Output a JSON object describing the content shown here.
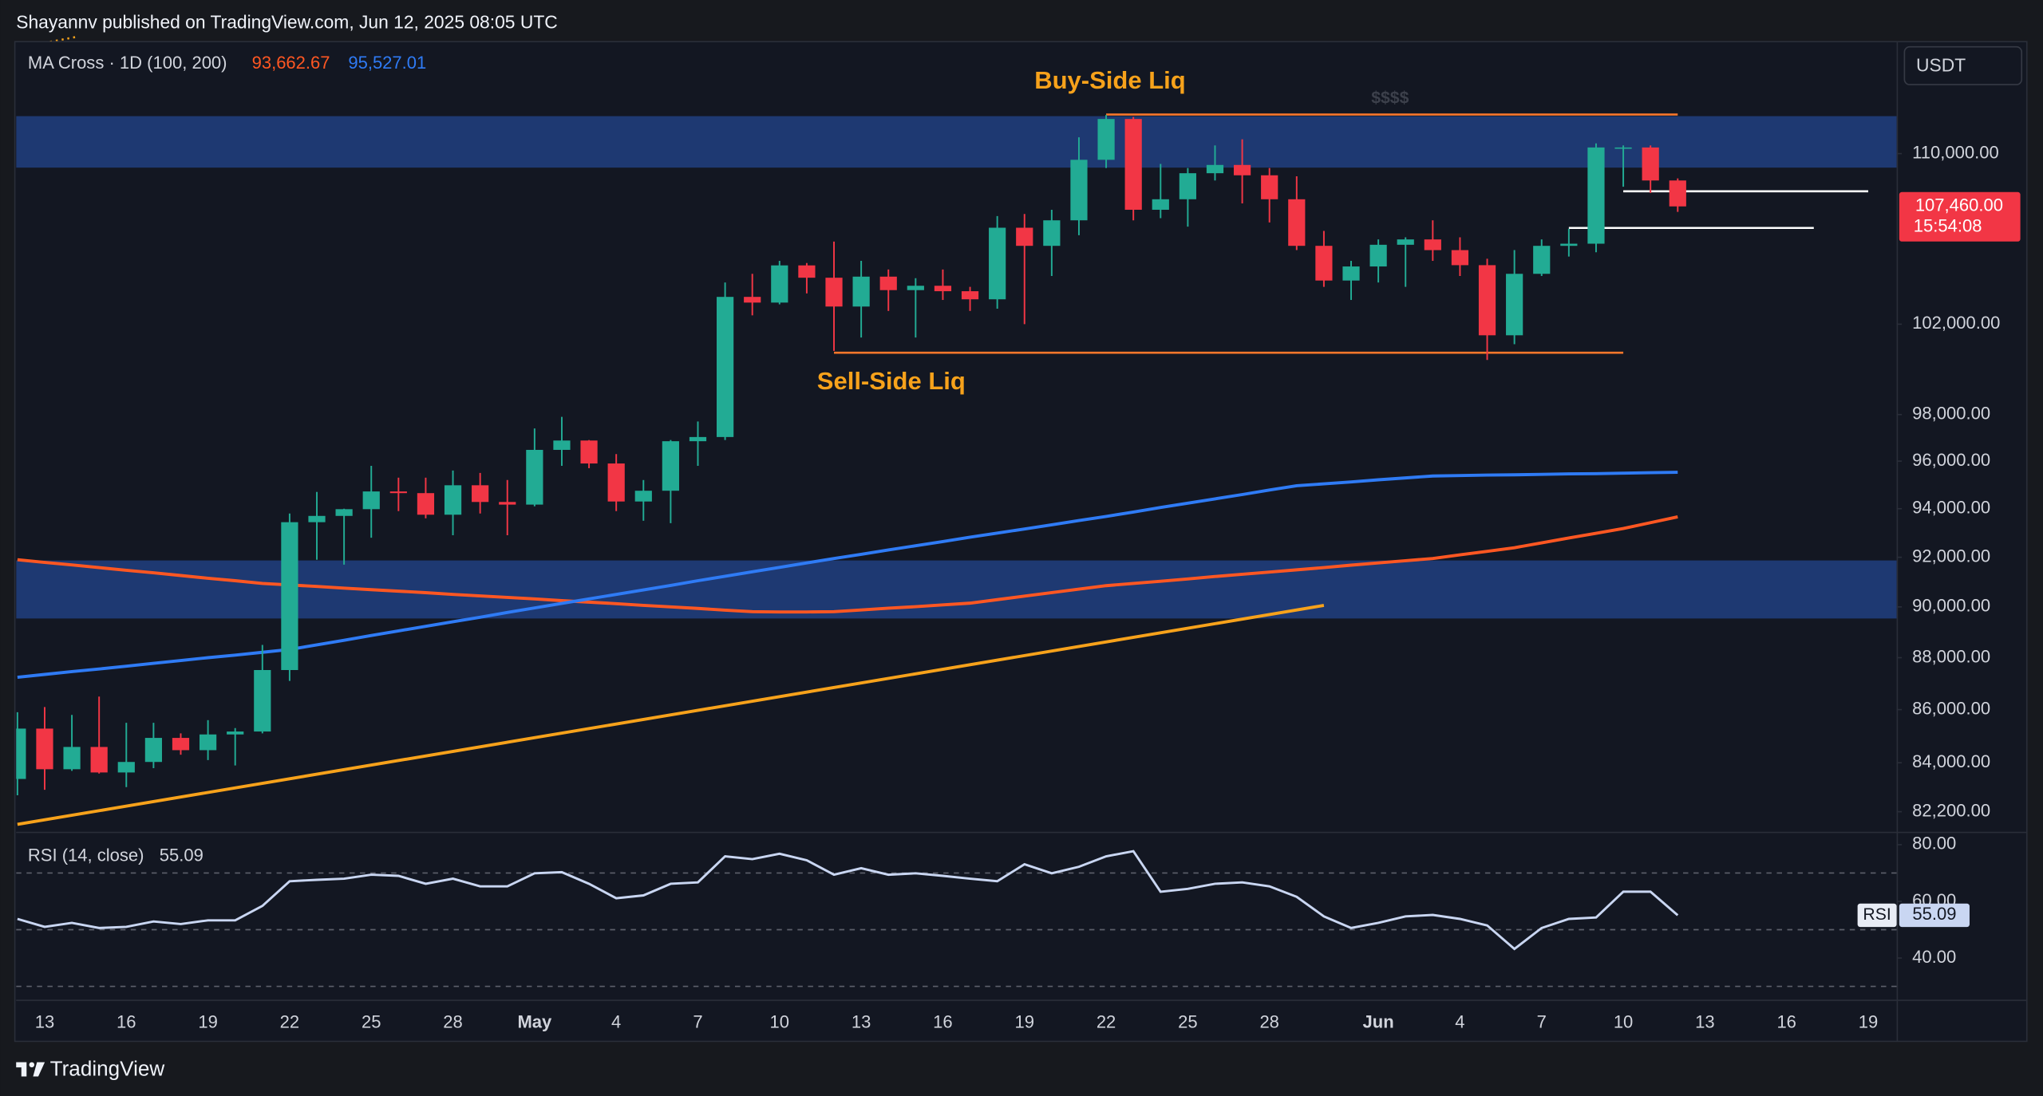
{
  "header": {
    "text": "Shayannv published on TradingView.com, Jun 12, 2025 08:05 UTC"
  },
  "footer": {
    "brand": "TradingView"
  },
  "currency_button": "USDT",
  "chart_data": [
    {
      "type": "candlestick",
      "log_scale": true,
      "grid": false,
      "up_color": "#22ab94",
      "down_color": "#f23645",
      "indicator_label": "MA Cross · 1D (100, 200)",
      "categories": [
        null,
        "13",
        null,
        null,
        "16",
        null,
        null,
        "19",
        null,
        null,
        "22",
        null,
        null,
        "25",
        null,
        null,
        "28",
        null,
        null,
        "May",
        null,
        null,
        "4",
        null,
        null,
        "7",
        null,
        null,
        "10",
        null,
        null,
        "13",
        null,
        null,
        "16",
        null,
        null,
        "19",
        null,
        null,
        "22",
        null,
        null,
        "25",
        null,
        null,
        "28",
        null,
        null,
        null,
        "Jun",
        null,
        null,
        "4",
        null,
        null,
        "7",
        null,
        null,
        "10",
        null,
        null,
        "13",
        null,
        null,
        "16",
        null,
        null,
        "19",
        null
      ],
      "open": [
        83400,
        85280,
        83760,
        84590,
        83640,
        84030,
        84930,
        84470,
        85060,
        85170,
        87520,
        93440,
        93700,
        93980,
        94720,
        94650,
        93750,
        94980,
        94280,
        94170,
        96480,
        96880,
        95900,
        94300,
        94750,
        96850,
        97030,
        103240,
        102980,
        104690,
        104120,
        102800,
        104170,
        103550,
        103750,
        103500,
        103130,
        106450,
        105600,
        106800,
        109700,
        111700,
        107300,
        107800,
        109050,
        109450,
        108950,
        107800,
        105600,
        103990,
        104640,
        105650,
        105900,
        105400,
        104700,
        101500,
        104300,
        105600,
        105700,
        110300,
        110300,
        108700,
        null,
        null,
        null,
        null,
        null,
        null,
        null,
        null
      ],
      "high": [
        85900,
        86100,
        85800,
        86500,
        85500,
        85500,
        85100,
        85600,
        85300,
        88500,
        93800,
        94700,
        94000,
        95800,
        95300,
        95300,
        95600,
        95500,
        95200,
        97400,
        97900,
        96900,
        96300,
        95200,
        96900,
        97700,
        103900,
        104300,
        104900,
        104800,
        105800,
        104900,
        104500,
        104100,
        104500,
        103700,
        107000,
        107100,
        107300,
        110800,
        111900,
        111800,
        109500,
        109300,
        110400,
        110700,
        109300,
        108900,
        106300,
        104900,
        105900,
        106000,
        106800,
        106000,
        105000,
        105400,
        105900,
        106400,
        110500,
        110400,
        110400,
        108800,
        null,
        null,
        null,
        null,
        null,
        null,
        null,
        null
      ],
      "low": [
        82800,
        83000,
        83700,
        83600,
        83100,
        83800,
        84300,
        84100,
        83900,
        85100,
        87100,
        91900,
        91700,
        92800,
        93900,
        93600,
        92900,
        93800,
        92900,
        94100,
        95800,
        95700,
        93900,
        93500,
        93400,
        95800,
        96900,
        102400,
        102900,
        103400,
        100800,
        101400,
        102600,
        101400,
        103100,
        102600,
        102700,
        102000,
        104200,
        106100,
        109300,
        106800,
        106900,
        106500,
        108700,
        107600,
        106700,
        105400,
        103700,
        103100,
        103900,
        103700,
        104900,
        104200,
        100400,
        101100,
        104200,
        105100,
        105300,
        108400,
        108100,
        107200,
        null,
        null,
        null,
        null,
        null,
        null,
        null,
        null
      ],
      "close": [
        85280,
        83760,
        84590,
        83640,
        84030,
        84930,
        84470,
        85060,
        85170,
        87520,
        93440,
        93700,
        93980,
        94720,
        94650,
        93750,
        94980,
        94280,
        94170,
        96480,
        96880,
        95900,
        94300,
        94750,
        96850,
        97030,
        103240,
        102980,
        104690,
        104120,
        102800,
        104170,
        103550,
        103750,
        103500,
        103130,
        106450,
        105600,
        106800,
        109700,
        111700,
        107300,
        107800,
        109050,
        109450,
        108950,
        107800,
        105600,
        103990,
        104640,
        105650,
        105900,
        105400,
        104700,
        101500,
        104300,
        105600,
        105700,
        110300,
        110300,
        108700,
        107460,
        null,
        null,
        null,
        null,
        null,
        null,
        null,
        null
      ],
      "series": [
        {
          "color": "#ff5722",
          "last_value_label": "93,662.67",
          "values": [
            91900,
            91790,
            91690,
            91580,
            91470,
            91370,
            91260,
            91150,
            91050,
            90940,
            90880,
            90820,
            90750,
            90690,
            90630,
            90570,
            90500,
            90440,
            90380,
            90320,
            90250,
            90190,
            90130,
            90060,
            90000,
            89940,
            89870,
            89810,
            89800,
            89800,
            89810,
            89880,
            89950,
            90010,
            90080,
            90150,
            90290,
            90430,
            90570,
            90710,
            90850,
            90940,
            91030,
            91120,
            91220,
            91310,
            91400,
            91490,
            91580,
            91680,
            91770,
            91860,
            91950,
            92100,
            92240,
            92390,
            92590,
            92790,
            92980,
            93180,
            93420,
            93662.67,
            null,
            null,
            null,
            null,
            null,
            null,
            null,
            null
          ]
        },
        {
          "color": "#2f7bf5",
          "last_value_label": "95,527.01",
          "values": [
            87240,
            87350,
            87460,
            87560,
            87670,
            87780,
            87890,
            88000,
            88100,
            88210,
            88320,
            88500,
            88680,
            88870,
            89050,
            89230,
            89410,
            89590,
            89780,
            89960,
            90140,
            90320,
            90500,
            90680,
            90860,
            91050,
            91230,
            91410,
            91590,
            91770,
            91950,
            92120,
            92300,
            92470,
            92640,
            92820,
            92990,
            93160,
            93330,
            93510,
            93680,
            93860,
            94050,
            94230,
            94410,
            94590,
            94780,
            94960,
            95040,
            95120,
            95210,
            95290,
            95370,
            95390,
            95410,
            95420,
            95440,
            95460,
            95470,
            95490,
            95510,
            95527.01,
            null,
            null,
            null,
            null,
            null,
            null,
            null,
            null
          ]
        }
      ],
      "trendline": {
        "color": "#f7a21b",
        "x": [
          0,
          48
        ],
        "values": [
          81740,
          90060
        ]
      },
      "zones": [
        {
          "from": 109320,
          "to": 111840,
          "color": "#213f80"
        },
        {
          "from": 89540,
          "to": 91870,
          "color": "#213f80"
        }
      ],
      "levels": [
        {
          "value": 111920,
          "from": 40,
          "to": 61,
          "color": "#f7772b"
        },
        {
          "value": 100720,
          "from": 30,
          "to": 59,
          "color": "#f7772b"
        },
        {
          "value": 108180,
          "from": 59,
          "to": 68,
          "color": "#ffffff"
        },
        {
          "value": 106440,
          "from": 57,
          "to": 66,
          "color": "#ffffff"
        }
      ],
      "annotations": {
        "buy_side": "Buy-Side Liq",
        "sell_side": "Sell-Side Liq",
        "target": "$$$$"
      },
      "ylim": [
        81520,
        115590
      ],
      "yticks": [
        {
          "value": 110000,
          "label": "110,000.00"
        },
        {
          "value": 102000,
          "label": "102,000.00"
        },
        {
          "value": 98000,
          "label": "98,000.00"
        },
        {
          "value": 96000,
          "label": "96,000.00"
        },
        {
          "value": 94000,
          "label": "94,000.00"
        },
        {
          "value": 92000,
          "label": "92,000.00"
        },
        {
          "value": 90000,
          "label": "90,000.00"
        },
        {
          "value": 88000,
          "label": "88,000.00"
        },
        {
          "value": 86000,
          "label": "86,000.00"
        },
        {
          "value": 84000,
          "label": "84,000.00"
        },
        {
          "value": 82200,
          "label": "82,200.00"
        }
      ],
      "last_price": {
        "value": 107460,
        "label": "107,460.00",
        "countdown": "15:54:08",
        "color": "#f23645"
      }
    },
    {
      "type": "line",
      "title": "RSI (14, close)",
      "tag": "RSI",
      "last_value_label": "55.09",
      "color": "#c9d6f2",
      "values": [
        53.8,
        51.0,
        52.4,
        50.6,
        51.0,
        52.9,
        52.0,
        53.3,
        53.3,
        58.4,
        67.1,
        67.6,
        68.0,
        69.4,
        69.0,
        66.2,
        68.0,
        65.3,
        65.3,
        69.9,
        70.3,
        66.2,
        61.1,
        62.1,
        66.2,
        66.7,
        75.9,
        74.9,
        76.8,
        74.5,
        69.4,
        71.7,
        69.4,
        69.9,
        69.0,
        68.0,
        67.1,
        73.1,
        69.9,
        72.2,
        75.9,
        77.7,
        63.4,
        64.4,
        66.2,
        66.7,
        65.3,
        61.6,
        54.7,
        50.6,
        52.4,
        54.7,
        55.2,
        53.8,
        51.5,
        43.2,
        50.6,
        53.8,
        54.3,
        63.4,
        63.4,
        55.09,
        null,
        null,
        null,
        null,
        null,
        null,
        null,
        null
      ],
      "ylim": [
        25.3,
        84.1
      ],
      "yticks": [
        {
          "value": 80,
          "label": "80.00"
        },
        {
          "value": 60,
          "label": "60.00"
        },
        {
          "value": 40,
          "label": "40.00"
        }
      ],
      "levels": [
        70,
        50,
        30
      ]
    }
  ]
}
